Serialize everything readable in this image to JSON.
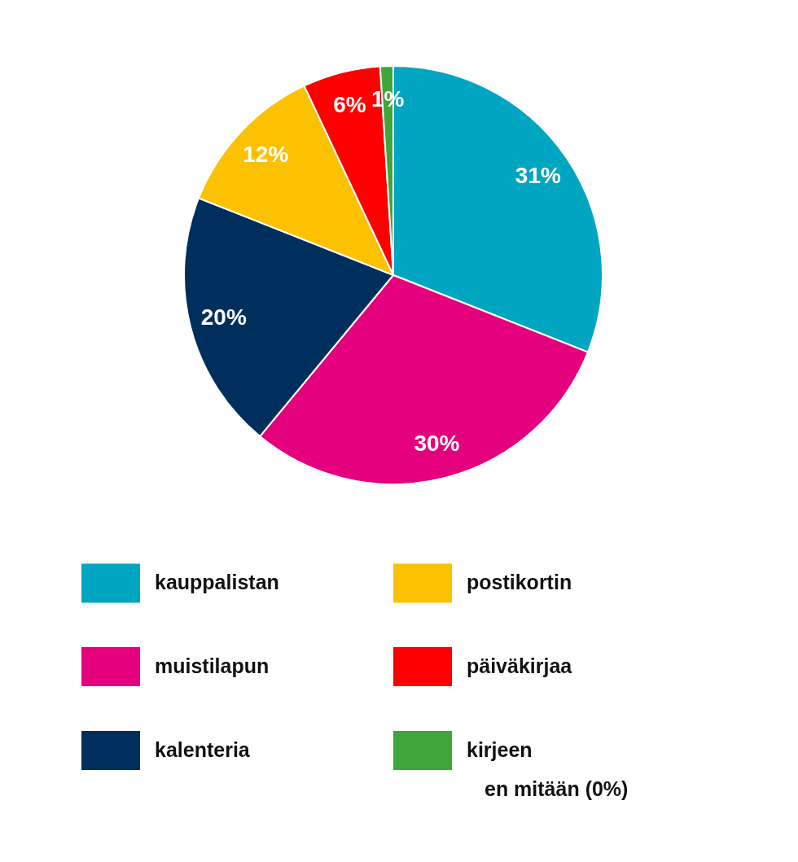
{
  "chart_data": {
    "type": "pie",
    "categories": [
      "kauppalistan",
      "muistilapun",
      "kalenteria",
      "postikortin",
      "päiväkirjaa",
      "kirjeen"
    ],
    "values": [
      31,
      30,
      20,
      12,
      6,
      1
    ],
    "colors": [
      "#00a6c1",
      "#e5007d",
      "#002e5d",
      "#fcc100",
      "#ff0000",
      "#3ea63a"
    ],
    "value_labels": [
      "31%",
      "30%",
      "20%",
      "12%",
      "6%",
      "1%"
    ],
    "legend": "bottom",
    "annotations": [
      "en mitään (0%)"
    ]
  }
}
